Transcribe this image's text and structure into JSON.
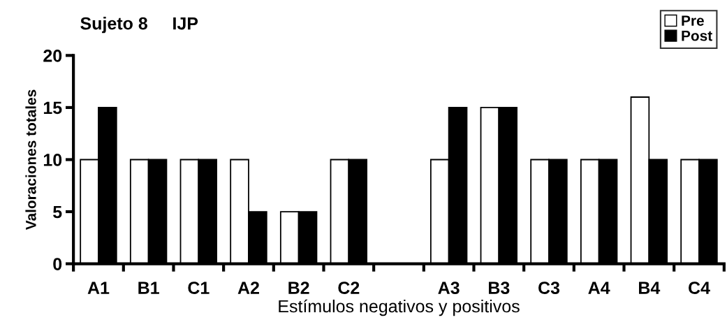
{
  "chart_data": {
    "type": "bar",
    "title": "Sujeto 8     IJP",
    "xlabel": "Estímulos negativos y positivos",
    "ylabel": "Valoraciones totales",
    "categories": [
      "A1",
      "B1",
      "C1",
      "A2",
      "B2",
      "C2",
      null,
      "A3",
      "B3",
      "C3",
      "A4",
      "B4",
      "C4"
    ],
    "series": [
      {
        "name": "Pre",
        "color": "#ffffff",
        "values": [
          10,
          10,
          10,
          10,
          5,
          10,
          null,
          10,
          15,
          10,
          10,
          16,
          10
        ]
      },
      {
        "name": "Post",
        "color": "#000000",
        "values": [
          15,
          10,
          10,
          5,
          5,
          10,
          null,
          15,
          15,
          10,
          10,
          10,
          10
        ]
      }
    ],
    "ylim": [
      0,
      20
    ],
    "yticks": [
      0,
      5,
      10,
      15,
      20
    ],
    "grid": false,
    "legend": "top right"
  }
}
